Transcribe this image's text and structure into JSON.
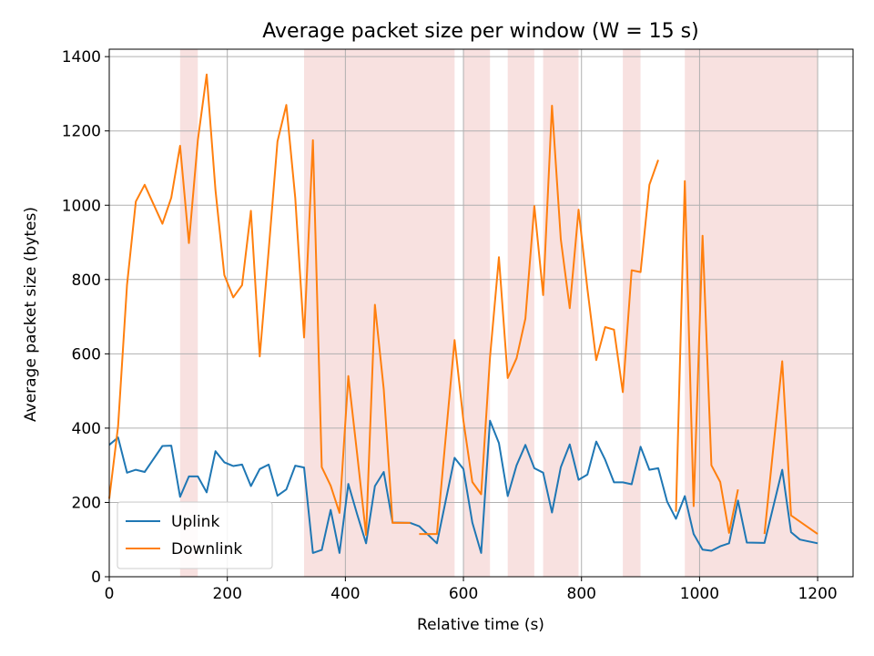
{
  "chart_data": {
    "type": "line",
    "title": "Average packet size per window (W = 15 s)",
    "xlabel": "Relative time (s)",
    "ylabel": "Average packet size (bytes)",
    "xlim": [
      0,
      1260
    ],
    "ylim": [
      0,
      1420
    ],
    "xticks": [
      0,
      200,
      400,
      600,
      800,
      1000,
      1200
    ],
    "yticks": [
      0,
      200,
      400,
      600,
      800,
      1000,
      1200,
      1400
    ],
    "grid": true,
    "legend": "lower-left",
    "shaded_intervals": [
      [
        120,
        150
      ],
      [
        330,
        585
      ],
      [
        600,
        645
      ],
      [
        675,
        720
      ],
      [
        735,
        795
      ],
      [
        870,
        900
      ],
      [
        975,
        1200
      ]
    ],
    "shade_color": "#f8e1e0",
    "series": [
      {
        "name": "Uplink",
        "color": "#1f77b4",
        "points": [
          [
            0,
            355
          ],
          [
            15,
            375
          ],
          [
            30,
            280
          ],
          [
            45,
            288
          ],
          [
            60,
            282
          ],
          [
            90,
            352
          ],
          [
            105,
            353
          ],
          [
            120,
            215
          ],
          [
            135,
            270
          ],
          [
            150,
            270
          ],
          [
            165,
            227
          ],
          [
            180,
            338
          ],
          [
            195,
            308
          ],
          [
            210,
            298
          ],
          [
            225,
            302
          ],
          [
            240,
            244
          ],
          [
            255,
            290
          ],
          [
            270,
            302
          ],
          [
            285,
            218
          ],
          [
            300,
            235
          ],
          [
            315,
            299
          ],
          [
            330,
            294
          ],
          [
            345,
            64
          ],
          [
            360,
            72
          ],
          [
            375,
            180
          ],
          [
            390,
            64
          ],
          [
            405,
            250
          ],
          [
            420,
            168
          ],
          [
            435,
            90
          ],
          [
            450,
            244
          ],
          [
            465,
            282
          ],
          [
            480,
            146
          ],
          [
            510,
            145
          ],
          [
            525,
            136
          ],
          [
            555,
            90
          ],
          [
            585,
            320
          ],
          [
            600,
            290
          ],
          [
            615,
            146
          ],
          [
            630,
            64
          ],
          [
            645,
            420
          ],
          [
            660,
            360
          ],
          [
            675,
            217
          ],
          [
            690,
            300
          ],
          [
            705,
            355
          ],
          [
            720,
            292
          ],
          [
            735,
            280
          ],
          [
            750,
            173
          ],
          [
            765,
            295
          ],
          [
            780,
            356
          ],
          [
            795,
            261
          ],
          [
            810,
            275
          ],
          [
            825,
            364
          ],
          [
            840,
            315
          ],
          [
            855,
            254
          ],
          [
            870,
            254
          ],
          [
            885,
            249
          ],
          [
            900,
            350
          ],
          [
            915,
            288
          ],
          [
            930,
            292
          ],
          [
            945,
            202
          ],
          [
            960,
            156
          ],
          [
            975,
            217
          ],
          [
            990,
            115
          ],
          [
            1005,
            73
          ],
          [
            1020,
            70
          ],
          [
            1035,
            82
          ],
          [
            1050,
            90
          ],
          [
            1065,
            205
          ],
          [
            1080,
            92
          ],
          [
            1110,
            91
          ],
          [
            1140,
            288
          ],
          [
            1155,
            120
          ],
          [
            1170,
            100
          ],
          [
            1200,
            90
          ]
        ]
      },
      {
        "name": "Downlink",
        "color": "#ff7f0e",
        "points": [
          [
            0,
            210
          ],
          [
            15,
            405
          ],
          [
            30,
            785
          ],
          [
            45,
            1010
          ],
          [
            60,
            1055
          ],
          [
            90,
            950
          ],
          [
            105,
            1020
          ],
          [
            120,
            1160
          ],
          [
            135,
            898
          ],
          [
            150,
            1175
          ],
          [
            165,
            1352
          ],
          [
            180,
            1040
          ],
          [
            195,
            812
          ],
          [
            210,
            752
          ],
          [
            225,
            785
          ],
          [
            240,
            985
          ],
          [
            255,
            593
          ],
          [
            270,
            878
          ],
          [
            285,
            1172
          ],
          [
            300,
            1270
          ],
          [
            315,
            1020
          ],
          [
            330,
            644
          ],
          [
            345,
            1175
          ],
          [
            360,
            295
          ],
          [
            375,
            245
          ],
          [
            390,
            172
          ],
          [
            405,
            540
          ],
          [
            420,
            330
          ],
          [
            435,
            112
          ],
          [
            450,
            732
          ],
          [
            465,
            505
          ],
          [
            480,
            145
          ],
          [
            510,
            145
          ],
          null,
          [
            525,
            115
          ],
          [
            555,
            115
          ],
          [
            585,
            637
          ],
          [
            600,
            420
          ],
          [
            615,
            255
          ],
          [
            630,
            222
          ],
          [
            645,
            590
          ],
          [
            660,
            860
          ],
          [
            675,
            535
          ],
          [
            690,
            588
          ],
          [
            705,
            695
          ],
          [
            720,
            998
          ],
          [
            735,
            758
          ],
          [
            750,
            1268
          ],
          [
            765,
            908
          ],
          [
            780,
            723
          ],
          [
            795,
            988
          ],
          [
            810,
            775
          ],
          [
            825,
            583
          ],
          [
            840,
            672
          ],
          [
            855,
            665
          ],
          [
            870,
            497
          ],
          [
            885,
            825
          ],
          [
            900,
            820
          ],
          [
            915,
            1055
          ],
          [
            930,
            1122
          ],
          null,
          [
            960,
            175
          ],
          [
            975,
            1065
          ],
          [
            990,
            190
          ],
          [
            1005,
            918
          ],
          [
            1020,
            300
          ],
          [
            1035,
            255
          ],
          [
            1050,
            118
          ],
          [
            1065,
            235
          ],
          null,
          [
            1110,
            115
          ],
          [
            1140,
            580
          ],
          [
            1155,
            165
          ],
          [
            1200,
            115
          ]
        ]
      }
    ]
  }
}
